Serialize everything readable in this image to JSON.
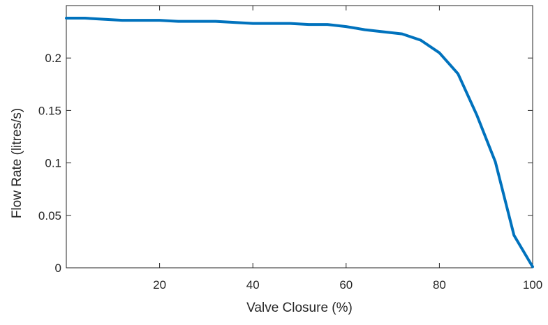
{
  "chart_data": {
    "type": "line",
    "title": "",
    "xlabel": "Valve Closure (%)",
    "ylabel": "Flow Rate (litres/s)",
    "xlim": [
      0,
      100
    ],
    "ylim": [
      0,
      0.25
    ],
    "xticks": [
      20,
      40,
      60,
      80,
      100
    ],
    "yticks": [
      0,
      0.05,
      0.1,
      0.15,
      0.2
    ],
    "xtick_labels": [
      "20",
      "40",
      "60",
      "80",
      "100"
    ],
    "ytick_labels": [
      "0",
      "0.05",
      "0.1",
      "0.15",
      "0.2"
    ],
    "grid": false,
    "box": true,
    "series": [
      {
        "color": "#0072BD",
        "x": [
          0,
          4,
          8,
          12,
          16,
          20,
          24,
          28,
          32,
          36,
          40,
          44,
          48,
          52,
          56,
          60,
          64,
          68,
          72,
          76,
          80,
          84,
          88,
          92,
          96,
          100
        ],
        "y": [
          0.238,
          0.238,
          0.237,
          0.236,
          0.236,
          0.236,
          0.235,
          0.235,
          0.235,
          0.234,
          0.233,
          0.233,
          0.233,
          0.232,
          0.232,
          0.23,
          0.227,
          0.225,
          0.223,
          0.217,
          0.205,
          0.185,
          0.146,
          0.101,
          0.031,
          0.001
        ]
      }
    ]
  }
}
